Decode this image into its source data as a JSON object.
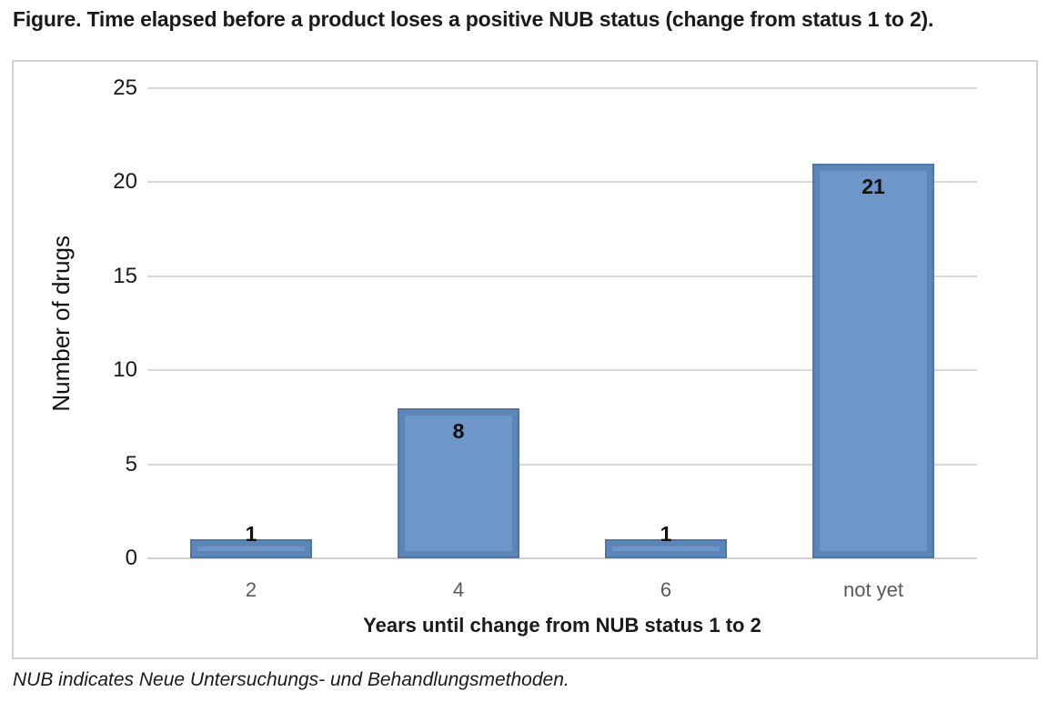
{
  "figure": {
    "title": "Figure. Time elapsed before a product loses a positive NUB status (change from status 1 to 2).",
    "footnote": "NUB indicates Neue Untersuchungs- und Behandlungsmethoden."
  },
  "chart_data": {
    "type": "bar",
    "title": "Time elapsed before a product loses a positive NUB status (change from status 1 to 2)",
    "categories": [
      "2",
      "4",
      "6",
      "not yet"
    ],
    "values": [
      1,
      8,
      1,
      21
    ],
    "xlabel": "Years until change from NUB status 1 to 2",
    "ylabel": "Number of drugs",
    "ylim": [
      0,
      25
    ],
    "yticks": [
      0,
      5,
      10,
      15,
      20,
      25
    ],
    "grid": "horizontal-only",
    "legend": "none",
    "data_labels": [
      {
        "text": "1",
        "placement": "outside-end"
      },
      {
        "text": "8",
        "placement": "inside-end"
      },
      {
        "text": "1",
        "placement": "outside-end"
      },
      {
        "text": "21",
        "placement": "inside-end"
      }
    ],
    "colors": {
      "bar_fill": "#6E96C9",
      "bar_rim": "#5C85B8",
      "bar_edge": "#4E76A8",
      "gridline": "#D9D9D9",
      "axis_line": "#D2D2D2",
      "chart_border": "#D2D2D2",
      "text_dark": "#1A1A1A",
      "tick_gray": "#595959"
    }
  }
}
